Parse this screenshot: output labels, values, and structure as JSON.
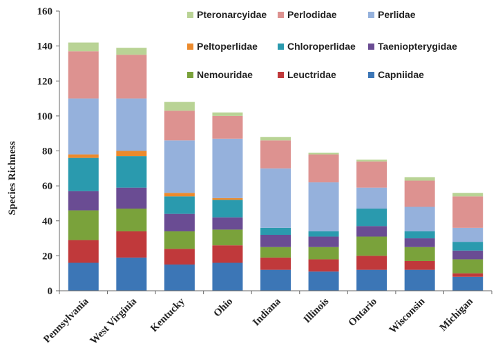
{
  "chart_data": {
    "type": "bar",
    "stacked": true,
    "ylabel": "Species Richness",
    "xlabel": "",
    "ylim": [
      0,
      160
    ],
    "yticks": [
      0,
      20,
      40,
      60,
      80,
      100,
      120,
      140,
      160
    ],
    "grid": false,
    "legend_position": "top-right",
    "categories": [
      "Pennsylvania",
      "West Virginia",
      "Kentucky",
      "Ohio",
      "Indiana",
      "Illinois",
      "Ontario",
      "Wisconsin",
      "Michigan"
    ],
    "series": [
      {
        "name": "Capniidae",
        "color": "#3c76b6",
        "values": [
          16,
          19,
          15,
          16,
          12,
          11,
          12,
          12,
          8
        ]
      },
      {
        "name": "Leuctridae",
        "color": "#c0393b",
        "values": [
          13,
          15,
          9,
          10,
          7,
          7,
          8,
          5,
          2
        ]
      },
      {
        "name": "Nemouridae",
        "color": "#7aa23b",
        "values": [
          17,
          13,
          10,
          9,
          6,
          7,
          11,
          8,
          8
        ]
      },
      {
        "name": "Taeniopterygidae",
        "color": "#6a4c93",
        "values": [
          11,
          12,
          10,
          7,
          7,
          6,
          6,
          5,
          5
        ]
      },
      {
        "name": "Chloroperlidae",
        "color": "#2a9aae",
        "values": [
          19,
          18,
          10,
          10,
          4,
          3,
          10,
          4,
          5
        ]
      },
      {
        "name": "Peltoperlidae",
        "color": "#ec8a2c",
        "values": [
          2,
          3,
          2,
          1,
          0,
          0,
          0,
          0,
          0
        ]
      },
      {
        "name": "Perlidae",
        "color": "#95b1dc",
        "values": [
          32,
          30,
          30,
          34,
          34,
          28,
          12,
          14,
          8
        ]
      },
      {
        "name": "Perlodidae",
        "color": "#dd9290",
        "values": [
          27,
          25,
          17,
          13,
          16,
          16,
          15,
          15,
          18
        ]
      },
      {
        "name": "Pteronarcyidae",
        "color": "#b9d395",
        "values": [
          5,
          4,
          5,
          2,
          2,
          1,
          1,
          2,
          2
        ]
      }
    ],
    "legend_order": [
      "Pteronarcyidae",
      "Perlodidae",
      "Perlidae",
      "Peltoperlidae",
      "Chloroperlidae",
      "Taeniopterygidae",
      "Nemouridae",
      "Leuctridae",
      "Capniidae"
    ]
  }
}
